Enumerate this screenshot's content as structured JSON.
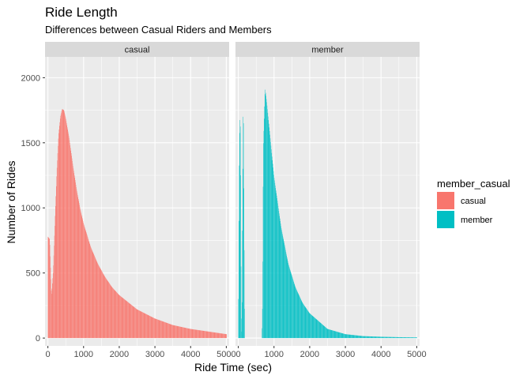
{
  "title": "Ride Length",
  "subtitle": "Differences between Casual Riders and Members",
  "colors": {
    "casual": "#F8766D",
    "member": "#00BFC4",
    "panel_bg": "#EBEBEB",
    "strip_bg": "#D9D9D9",
    "grid": "#FFFFFF"
  },
  "chart_data": {
    "type": "bar",
    "xlabel": "Ride Time (sec)",
    "ylabel": "Number of Rides",
    "xlim": [
      -80,
      5080
    ],
    "ylim": [
      -60,
      2160
    ],
    "x_ticks": [
      0,
      1000,
      2000,
      3000,
      4000,
      5000
    ],
    "y_ticks": [
      0,
      500,
      1000,
      1500,
      2000
    ],
    "x_tick_labels": [
      "0",
      "1000",
      "2000",
      "3000",
      "4000",
      "5000"
    ],
    "y_tick_labels": [
      "0",
      "500",
      "1000",
      "1500",
      "2000"
    ],
    "grid": true,
    "bin_width_sec": 10,
    "legend": {
      "title": "member_casual",
      "placement": "right",
      "entries": [
        "casual",
        "member"
      ]
    },
    "panels": [
      {
        "strip_label": "casual",
        "series": "casual",
        "profile": [
          [
            0,
            780
          ],
          [
            50,
            760
          ],
          [
            100,
            320
          ],
          [
            150,
            520
          ],
          [
            200,
            900
          ],
          [
            250,
            1280
          ],
          [
            300,
            1560
          ],
          [
            350,
            1700
          ],
          [
            400,
            1760
          ],
          [
            450,
            1750
          ],
          [
            500,
            1690
          ],
          [
            600,
            1530
          ],
          [
            700,
            1330
          ],
          [
            800,
            1150
          ],
          [
            900,
            1000
          ],
          [
            1000,
            880
          ],
          [
            1200,
            700
          ],
          [
            1400,
            570
          ],
          [
            1600,
            470
          ],
          [
            1800,
            390
          ],
          [
            2000,
            330
          ],
          [
            2500,
            220
          ],
          [
            3000,
            150
          ],
          [
            3500,
            100
          ],
          [
            4000,
            70
          ],
          [
            4500,
            50
          ],
          [
            5000,
            30
          ]
        ]
      },
      {
        "strip_label": "member",
        "series": "member",
        "profile": [
          [
            0,
            0
          ],
          [
            20,
            1200
          ],
          [
            40,
            1700
          ],
          [
            60,
            1600
          ],
          [
            80,
            200
          ],
          [
            100,
            0
          ],
          [
            120,
            1100
          ],
          [
            140,
            1900
          ],
          [
            160,
            900
          ],
          [
            180,
            0
          ],
          [
            660,
            0
          ],
          [
            680,
            300
          ],
          [
            700,
            1450
          ],
          [
            750,
            1920
          ],
          [
            800,
            1800
          ],
          [
            900,
            1520
          ],
          [
            1000,
            1240
          ],
          [
            1200,
            850
          ],
          [
            1400,
            570
          ],
          [
            1600,
            390
          ],
          [
            1800,
            270
          ],
          [
            2000,
            190
          ],
          [
            2500,
            70
          ],
          [
            3000,
            30
          ],
          [
            3500,
            15
          ],
          [
            4000,
            10
          ],
          [
            4500,
            7
          ],
          [
            5000,
            5
          ]
        ]
      }
    ]
  }
}
